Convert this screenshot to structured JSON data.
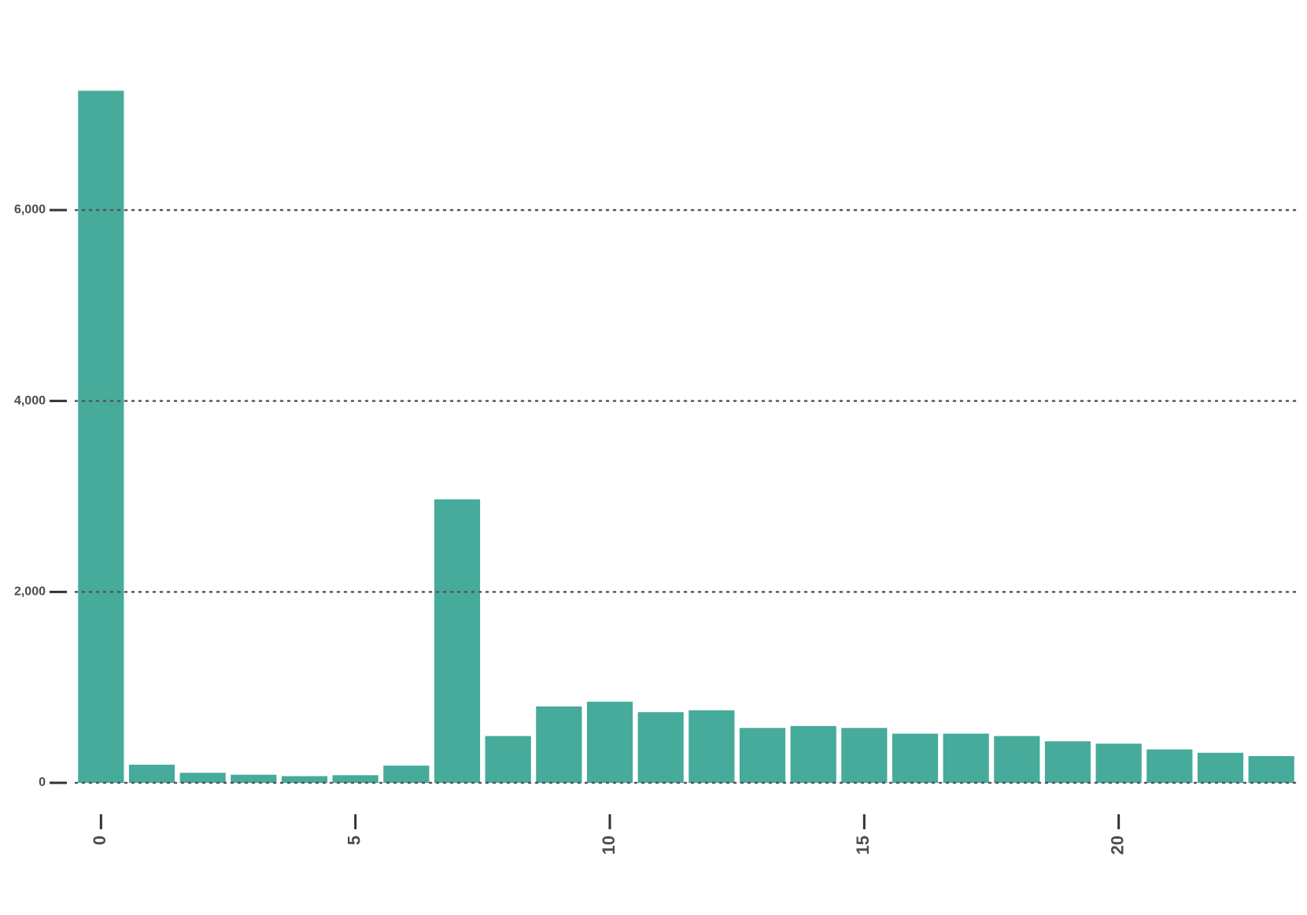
{
  "chart_data": {
    "type": "bar",
    "x": [
      0,
      1,
      2,
      3,
      4,
      5,
      6,
      7,
      8,
      9,
      10,
      11,
      12,
      13,
      14,
      15,
      16,
      17,
      18,
      19,
      20,
      21,
      22,
      23
    ],
    "values": [
      7250,
      190,
      105,
      85,
      70,
      80,
      180,
      2970,
      490,
      800,
      850,
      740,
      760,
      575,
      595,
      575,
      515,
      515,
      490,
      435,
      410,
      350,
      315,
      280
    ],
    "color": "#46ab9a",
    "xlim": [
      -0.5,
      23.5
    ],
    "xticks": [
      0,
      5,
      10,
      15,
      20
    ],
    "ylim": [
      0,
      7500
    ],
    "yticks": [
      0,
      {
        "value": 2000,
        "label": "2,000"
      },
      {
        "value": 4000,
        "label": "4,000"
      },
      {
        "value": 6000,
        "label": "6,000"
      }
    ],
    "grid": true
  }
}
